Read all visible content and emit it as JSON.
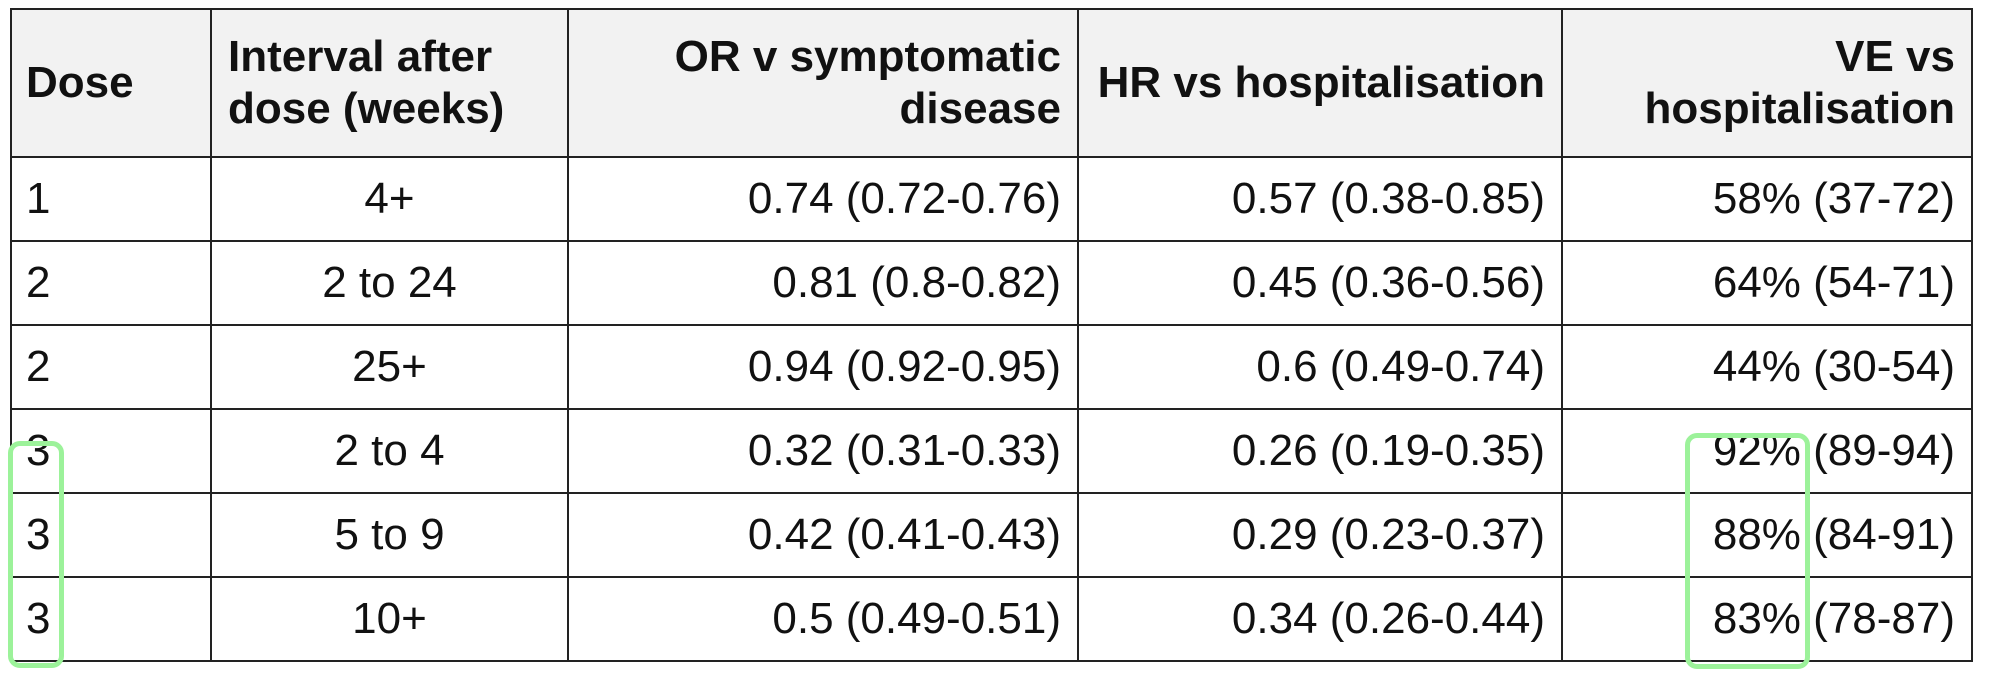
{
  "table": {
    "headers": {
      "dose": "Dose",
      "interval": "Interval after dose (weeks)",
      "or": "OR v symptomatic disease",
      "hr": "HR vs hospitalisation",
      "ve": "VE vs hospitalisation"
    },
    "rows": [
      {
        "dose": "1",
        "interval": "4+",
        "or": "0.74 (0.72-0.76)",
        "hr": "0.57 (0.38-0.85)",
        "ve": "58% (37-72)"
      },
      {
        "dose": "2",
        "interval": "2 to 24",
        "or": "0.81 (0.8-0.82)",
        "hr": "0.45 (0.36-0.56)",
        "ve": "64% (54-71)"
      },
      {
        "dose": "2",
        "interval": "25+",
        "or": "0.94 (0.92-0.95)",
        "hr": "0.6 (0.49-0.74)",
        "ve": "44% (30-54)"
      },
      {
        "dose": "3",
        "interval": "2 to 4",
        "or": "0.32 (0.31-0.33)",
        "hr": "0.26 (0.19-0.35)",
        "ve": "92% (89-94)"
      },
      {
        "dose": "3",
        "interval": "5 to 9",
        "or": "0.42 (0.41-0.43)",
        "hr": "0.29 (0.23-0.37)",
        "ve": "88% (84-91)"
      },
      {
        "dose": "3",
        "interval": "10+",
        "or": "0.5 (0.49-0.51)",
        "hr": "0.34 (0.26-0.44)",
        "ve": "83% (78-87)"
      }
    ]
  },
  "highlight_color": "#9cf29a"
}
